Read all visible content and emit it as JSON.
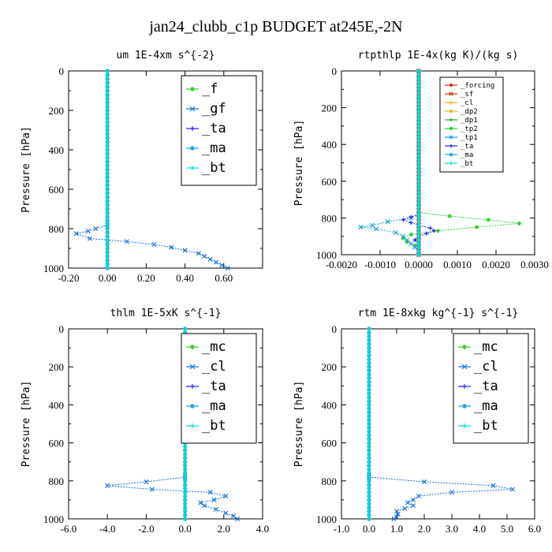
{
  "title": "jan24_clubb_c1p  BUDGET at245E,-2N",
  "chart_data": [
    {
      "type": "line",
      "title": "um  1E-4xm s^{-2}",
      "ylabel": "Pressure [hPa]",
      "xlim": [
        -0.2,
        0.8
      ],
      "xticks": [
        "-0.20",
        "0.00",
        "0.20",
        "0.40",
        "0.60"
      ],
      "xtick_values": [
        -0.2,
        0.0,
        0.2,
        0.4,
        0.6
      ],
      "ylim": [
        1000,
        0
      ],
      "yticks": [
        "0",
        "200",
        "400",
        "600",
        "800",
        "1000"
      ],
      "legend": {
        "position": "top-right",
        "size": "large"
      },
      "series": [
        {
          "name": "_f",
          "color": "#33cc33",
          "y": [
            0,
            1000
          ],
          "x": [
            0.0,
            0.0
          ]
        },
        {
          "name": "_gf",
          "color": "#1a6fdc",
          "y": [
            780,
            800,
            812,
            825,
            850,
            865,
            880,
            895,
            910,
            925,
            940,
            955,
            970,
            985,
            1000
          ],
          "x": [
            0.0,
            -0.06,
            -0.1,
            -0.16,
            -0.09,
            0.1,
            0.24,
            0.33,
            0.4,
            0.47,
            0.5,
            0.53,
            0.56,
            0.59,
            0.62
          ]
        },
        {
          "name": "_ta",
          "color": "#2222ee",
          "y": [
            0,
            1000
          ],
          "x": [
            0.0,
            0.0
          ]
        },
        {
          "name": "_ma",
          "color": "#1a9fe0",
          "y": [
            0,
            1000
          ],
          "x": [
            0.0,
            0.0
          ]
        },
        {
          "name": "_bt",
          "color": "#00dddd",
          "y": [
            0,
            1000
          ],
          "x": [
            0.0,
            0.0
          ]
        }
      ]
    },
    {
      "type": "line",
      "title": "rtpthlp  1E-4x(kg K)/(kg s)",
      "ylabel": "Pressure [hPa]",
      "xlim": [
        -0.002,
        0.003
      ],
      "xticks": [
        "-0.0020",
        "-0.0010",
        "0.0000",
        "0.0010",
        "0.0020",
        "0.0030"
      ],
      "xtick_values": [
        -0.002,
        -0.001,
        0.0,
        0.001,
        0.002,
        0.003
      ],
      "ylim": [
        1000,
        0
      ],
      "yticks": [
        "0",
        "200",
        "400",
        "600",
        "800",
        "1000"
      ],
      "legend": {
        "position": "top-right",
        "size": "small"
      },
      "series": [
        {
          "name": "_forcing",
          "color": "#dd2222",
          "y": [
            0,
            1000
          ],
          "x": [
            0.0,
            0.0
          ]
        },
        {
          "name": "_sf",
          "color": "#cc3300",
          "y": [
            0,
            1000
          ],
          "x": [
            0.0,
            0.0
          ]
        },
        {
          "name": "_cl",
          "color": "#ffaa00",
          "y": [
            0,
            1000
          ],
          "x": [
            0.0,
            0.0
          ]
        },
        {
          "name": "_dp2",
          "color": "#ddbb33",
          "y": [
            0,
            1000
          ],
          "x": [
            0.0,
            0.0
          ]
        },
        {
          "name": "_dp1",
          "color": "#22aa22",
          "y": [
            0,
            1000
          ],
          "x": [
            0.0,
            0.0
          ]
        },
        {
          "name": "_tp2",
          "color": "#33cc33",
          "y": [
            770,
            790,
            810,
            830,
            850,
            870,
            890,
            910,
            930,
            950,
            970,
            990
          ],
          "x": [
            0.0,
            0.0008,
            0.0018,
            0.0026,
            0.0015,
            0.0005,
            -0.0002,
            -0.0004,
            -0.0003,
            -0.0001,
            0.0,
            0.0
          ]
        },
        {
          "name": "_tp1",
          "color": "#1a9fe0",
          "y": [
            780,
            800,
            820,
            840,
            850,
            860,
            880,
            900,
            920,
            940,
            960,
            980
          ],
          "x": [
            0.0,
            -0.0002,
            -0.0008,
            -0.0012,
            -0.0015,
            -0.0011,
            -0.0006,
            -0.0004,
            -0.0003,
            -0.0002,
            -0.0001,
            0.0
          ]
        },
        {
          "name": "_ta",
          "color": "#2222ee",
          "y": [
            780,
            795,
            810,
            825,
            840,
            855,
            870,
            885,
            900,
            920,
            940,
            960
          ],
          "x": [
            0.0,
            -0.0002,
            -0.0004,
            -0.0002,
            0.0,
            0.0003,
            0.0004,
            0.0002,
            0.0,
            -0.0001,
            0.0,
            0.0
          ]
        },
        {
          "name": "_ma",
          "color": "#1a9fe0",
          "y": [
            0,
            1000
          ],
          "x": [
            0.0,
            0.0
          ]
        },
        {
          "name": "_bt",
          "color": "#00dddd",
          "y": [
            0,
            1000
          ],
          "x": [
            0.0,
            0.0
          ]
        }
      ]
    },
    {
      "type": "line",
      "title": "thlm  1E-5xK s^{-1}",
      "ylabel": "Pressure [hPa]",
      "xlim": [
        -6.0,
        4.0
      ],
      "xticks": [
        "-6.0",
        "-4.0",
        "-2.0",
        "0.0",
        "2.0",
        "4.0"
      ],
      "xtick_values": [
        -6,
        -4,
        -2,
        0,
        2,
        4
      ],
      "ylim": [
        1000,
        0
      ],
      "yticks": [
        "0",
        "200",
        "400",
        "600",
        "800",
        "1000"
      ],
      "legend": {
        "position": "top-right",
        "size": "large"
      },
      "series": [
        {
          "name": "_mc",
          "color": "#33cc33",
          "y": [
            0,
            1000
          ],
          "x": [
            0.0,
            0.0
          ]
        },
        {
          "name": "_cl",
          "color": "#1a6fdc",
          "y": [
            780,
            805,
            825,
            845,
            860,
            880,
            900,
            915,
            930,
            950,
            970,
            985,
            1000
          ],
          "x": [
            0.0,
            -2.0,
            -4.0,
            -1.7,
            1.3,
            2.1,
            1.5,
            0.8,
            1.0,
            1.6,
            2.1,
            2.5,
            2.7
          ]
        },
        {
          "name": "_ta",
          "color": "#2222ee",
          "y": [
            0,
            1000
          ],
          "x": [
            0.0,
            0.0
          ]
        },
        {
          "name": "_ma",
          "color": "#1a9fe0",
          "y": [
            0,
            1000
          ],
          "x": [
            0.0,
            0.0
          ]
        },
        {
          "name": "_bt",
          "color": "#00dddd",
          "y": [
            0,
            1000
          ],
          "x": [
            0.0,
            0.0
          ]
        }
      ]
    },
    {
      "type": "line",
      "title": "rtm  1E-8xkg kg^{-1} s^{-1}",
      "ylabel": "Pressure [hPa]",
      "xlim": [
        -1.0,
        6.0
      ],
      "xticks": [
        "-1.0",
        "0.0",
        "1.0",
        "2.0",
        "3.0",
        "4.0",
        "5.0",
        "6.0"
      ],
      "xtick_values": [
        -1,
        0,
        1,
        2,
        3,
        4,
        5,
        6
      ],
      "ylim": [
        1000,
        0
      ],
      "yticks": [
        "0",
        "200",
        "400",
        "600",
        "800",
        "1000"
      ],
      "legend": {
        "position": "top-right",
        "size": "large"
      },
      "series": [
        {
          "name": "_mc",
          "color": "#33cc33",
          "y": [
            0,
            1000
          ],
          "x": [
            0.0,
            0.0
          ]
        },
        {
          "name": "_cl",
          "color": "#1a6fdc",
          "y": [
            780,
            805,
            825,
            845,
            860,
            880,
            900,
            915,
            930,
            945,
            960,
            975,
            990,
            1000
          ],
          "x": [
            0.0,
            2.0,
            4.5,
            5.2,
            3.0,
            1.8,
            1.6,
            1.4,
            1.6,
            1.3,
            1.0,
            1.05,
            1.0,
            0.9
          ]
        },
        {
          "name": "_ta",
          "color": "#2222ee",
          "y": [
            0,
            1000
          ],
          "x": [
            0.0,
            0.0
          ]
        },
        {
          "name": "_ma",
          "color": "#1a9fe0",
          "y": [
            0,
            1000
          ],
          "x": [
            0.0,
            0.0
          ]
        },
        {
          "name": "_bt",
          "color": "#00dddd",
          "y": [
            0,
            1000
          ],
          "x": [
            0.0,
            0.0
          ]
        }
      ]
    }
  ]
}
